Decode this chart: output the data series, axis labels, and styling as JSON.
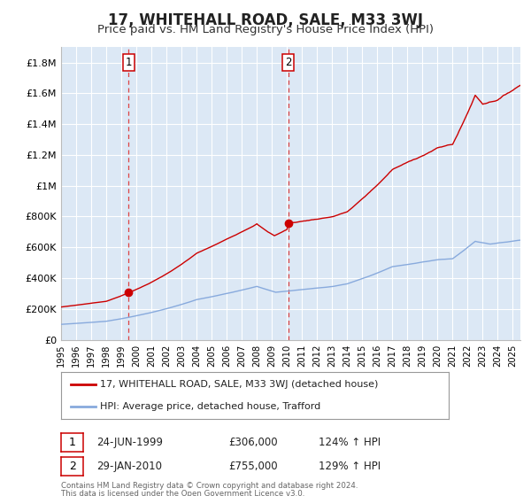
{
  "title": "17, WHITEHALL ROAD, SALE, M33 3WJ",
  "subtitle": "Price paid vs. HM Land Registry's House Price Index (HPI)",
  "title_fontsize": 12,
  "subtitle_fontsize": 9.5,
  "ylim": [
    0,
    1900000
  ],
  "yticks": [
    0,
    200000,
    400000,
    600000,
    800000,
    1000000,
    1200000,
    1400000,
    1600000,
    1800000
  ],
  "ytick_labels": [
    "£0",
    "£200K",
    "£400K",
    "£600K",
    "£800K",
    "£1M",
    "£1.2M",
    "£1.4M",
    "£1.6M",
    "£1.8M"
  ],
  "xlim_start": 1995.0,
  "xlim_end": 2025.5,
  "background_color": "#ffffff",
  "plot_bg_color": "#dce8f5",
  "grid_color": "#ffffff",
  "sale1_date": 1999.48,
  "sale1_price": 306000,
  "sale2_date": 2010.08,
  "sale2_price": 755000,
  "sale1_label": "1",
  "sale2_label": "2",
  "red_line_color": "#cc0000",
  "blue_line_color": "#88aadd",
  "vline_color": "#dd4444",
  "legend_label_red": "17, WHITEHALL ROAD, SALE, M33 3WJ (detached house)",
  "legend_label_blue": "HPI: Average price, detached house, Trafford",
  "table_row1": [
    "1",
    "24-JUN-1999",
    "£306,000",
    "124% ↑ HPI"
  ],
  "table_row2": [
    "2",
    "29-JAN-2010",
    "£755,000",
    "129% ↑ HPI"
  ],
  "footer_line1": "Contains HM Land Registry data © Crown copyright and database right 2024.",
  "footer_line2": "This data is licensed under the Open Government Licence v3.0."
}
